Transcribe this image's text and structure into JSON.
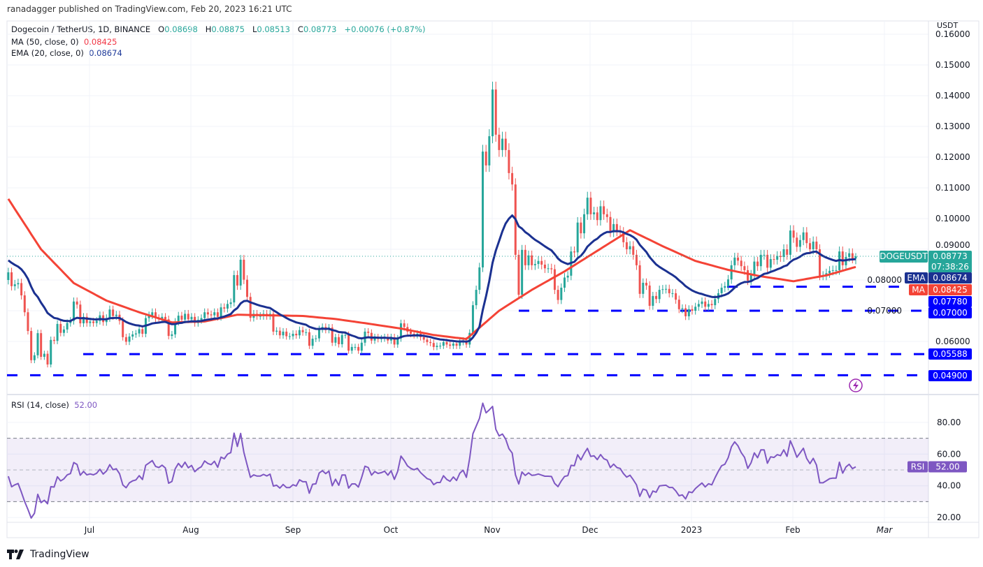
{
  "header": {
    "published": "ranadagger published on TradingView.com, Feb 20, 2023 16:21 UTC"
  },
  "legend": {
    "symbol": "Dogecoin / TetherUS, 1D, BINANCE",
    "o_label": "O",
    "o": "0.08698",
    "h_label": "H",
    "h": "0.08875",
    "l_label": "L",
    "l": "0.08513",
    "c_label": "C",
    "c": "0.08773",
    "change": "+0.00076 (+0.87%)",
    "ma_label": "MA (50, close, 0)",
    "ma_value": "0.08425",
    "ema_label": "EMA (20, close, 0)",
    "ema_value": "0.08674",
    "rsi_label": "RSI (14, close)",
    "rsi_value": "52.00"
  },
  "price_axis": {
    "unit": "USDT",
    "ticks": [
      "0.06000",
      "0.07000",
      "0.08000",
      "0.09000",
      "0.10000",
      "0.11000",
      "0.12000",
      "0.13000",
      "0.14000",
      "0.15000",
      "0.16000"
    ]
  },
  "rsi_axis": {
    "ticks": [
      "20.00",
      "40.00",
      "60.00",
      "80.00"
    ]
  },
  "time_axis": {
    "labels": [
      "Jul",
      "Aug",
      "Sep",
      "Oct",
      "Nov",
      "Dec",
      "2023",
      "Feb",
      "Mar"
    ]
  },
  "badges": {
    "symbol": "DOGEUSDT",
    "price": "0.08773",
    "countdown": "07:38:26",
    "ema_tag": "EMA",
    "ema": "0.08674",
    "ma_tag": "MA",
    "ma": "0.08425",
    "rsi_tag": "RSI",
    "rsi": "52.00",
    "levels": [
      "0.07780",
      "0.07000",
      "0.05588",
      "0.04900"
    ]
  },
  "footer": {
    "brand": "TradingView"
  },
  "icons": {
    "alert": "lightning-icon",
    "logo": "tradingview-logo-icon"
  },
  "colors": {
    "up": "#26a69a",
    "down": "#ef5350",
    "ema": "#1b3191",
    "ma": "#f44336",
    "levels": "#0000ff",
    "rsi": "#7e57c2",
    "grid": "#f0f3fa",
    "border": "#e0e3eb"
  },
  "chart_data": {
    "type": "candlestick",
    "interval": "1D",
    "ylim": [
      0.048,
      0.161
    ],
    "first_open": 0.08,
    "closes": [
      0.0825,
      0.078,
      0.0786,
      0.079,
      0.075,
      0.0695,
      0.0634,
      0.0539,
      0.0555,
      0.0627,
      0.055,
      0.056,
      0.0525,
      0.0605,
      0.0602,
      0.0657,
      0.0628,
      0.0639,
      0.066,
      0.0667,
      0.073,
      0.072,
      0.0659,
      0.068,
      0.066,
      0.0665,
      0.066,
      0.0667,
      0.0685,
      0.0663,
      0.0676,
      0.0704,
      0.0683,
      0.0687,
      0.0667,
      0.0614,
      0.0599,
      0.0616,
      0.0623,
      0.0626,
      0.064,
      0.0625,
      0.0676,
      0.0685,
      0.0695,
      0.0676,
      0.0672,
      0.068,
      0.0672,
      0.0618,
      0.0623,
      0.0664,
      0.0684,
      0.0671,
      0.069,
      0.0672,
      0.068,
      0.066,
      0.067,
      0.0676,
      0.0695,
      0.0688,
      0.0685,
      0.0695,
      0.068,
      0.0711,
      0.0707,
      0.0722,
      0.0727,
      0.0816,
      0.0782,
      0.0866,
      0.0801,
      0.0745,
      0.0677,
      0.069,
      0.0683,
      0.0683,
      0.069,
      0.0683,
      0.069,
      0.0632,
      0.0635,
      0.062,
      0.0632,
      0.0617,
      0.0617,
      0.0625,
      0.062,
      0.0637,
      0.063,
      0.063,
      0.0586,
      0.0609,
      0.061,
      0.064,
      0.0647,
      0.0638,
      0.0645,
      0.0596,
      0.0614,
      0.0591,
      0.0621,
      0.0621,
      0.057,
      0.0582,
      0.0582,
      0.057,
      0.0596,
      0.0632,
      0.0628,
      0.0603,
      0.0614,
      0.0608,
      0.061,
      0.0614,
      0.0603,
      0.0614,
      0.059,
      0.061,
      0.0659,
      0.0647,
      0.0632,
      0.0625,
      0.0621,
      0.0625,
      0.0614,
      0.0606,
      0.0598,
      0.0595,
      0.0582,
      0.0586,
      0.0586,
      0.0598,
      0.059,
      0.0586,
      0.0593,
      0.0586,
      0.0598,
      0.0603,
      0.059,
      0.0628,
      0.0718,
      0.0768,
      0.0841,
      0.1218,
      0.1173,
      0.1268,
      0.142,
      0.1273,
      0.1223,
      0.126,
      0.1223,
      0.1148,
      0.1111,
      0.0882,
      0.0752,
      0.0898,
      0.0848,
      0.088,
      0.0848,
      0.0852,
      0.0862,
      0.085,
      0.0838,
      0.0838,
      0.0835,
      0.0768,
      0.0735,
      0.0775,
      0.0808,
      0.0814,
      0.0893,
      0.089,
      0.0987,
      0.0952,
      0.1014,
      0.1068,
      0.1014,
      0.102,
      0.0995,
      0.104,
      0.1014,
      0.1005,
      0.0957,
      0.0982,
      0.096,
      0.0955,
      0.0923,
      0.09,
      0.091,
      0.0882,
      0.0848,
      0.0755,
      0.0791,
      0.0782,
      0.0716,
      0.0748,
      0.0738,
      0.0768,
      0.077,
      0.0771,
      0.0757,
      0.0757,
      0.0736,
      0.0705,
      0.0708,
      0.0682,
      0.0705,
      0.07,
      0.0713,
      0.0722,
      0.073,
      0.0713,
      0.0722,
      0.0718,
      0.0738,
      0.0757,
      0.0775,
      0.078,
      0.0802,
      0.0848,
      0.0873,
      0.0863,
      0.0845,
      0.0832,
      0.0798,
      0.0818,
      0.086,
      0.0845,
      0.0882,
      0.0882,
      0.084,
      0.0868,
      0.0866,
      0.0878,
      0.0875,
      0.09,
      0.0882,
      0.0961,
      0.0938,
      0.0908,
      0.093,
      0.0955,
      0.092,
      0.09,
      0.0925,
      0.09,
      0.0814,
      0.0814,
      0.0822,
      0.083,
      0.0832,
      0.0832,
      0.0893,
      0.0848,
      0.0875,
      0.0887,
      0.087,
      0.08773
    ],
    "last": {
      "open": 0.08698,
      "high": 0.08875,
      "low": 0.08513,
      "close": 0.08773
    },
    "ma50_every_10_bars": [
      0.1064,
      0.09,
      0.079,
      0.0733,
      0.0695,
      0.0662,
      0.0665,
      0.0687,
      0.0685,
      0.0683,
      0.0673,
      0.0658,
      0.0642,
      0.0621,
      0.0608,
      0.07,
      0.0768,
      0.0828,
      0.0895,
      0.0962,
      0.091,
      0.0862,
      0.0833,
      0.0812,
      0.0796,
      0.0815,
      0.08425
    ],
    "ema20_first": 0.0864,
    "ema20_last": 0.08674,
    "levels": [
      0.0778,
      0.07,
      0.05588,
      0.049
    ],
    "rsi": {
      "period": 14,
      "ylim": [
        15,
        95
      ],
      "band": [
        30,
        70
      ],
      "mid": 50,
      "last": 52.0
    }
  }
}
